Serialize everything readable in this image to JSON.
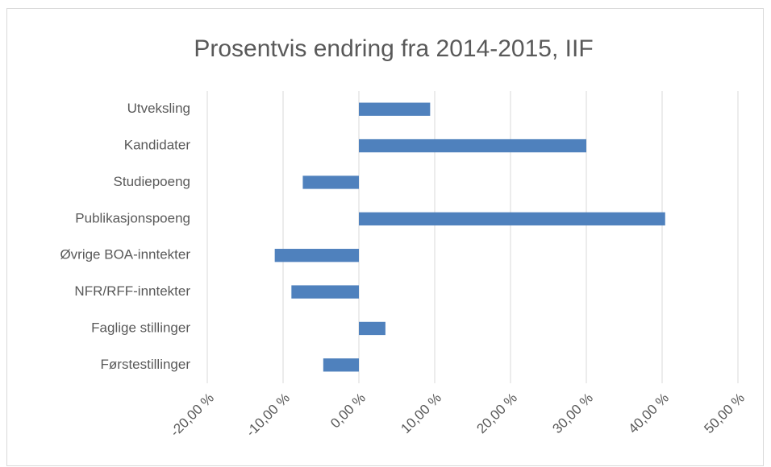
{
  "chart_data": {
    "type": "barh",
    "title": "Prosentvis endring fra 2014-2015, IIF",
    "categories": [
      "Utveksling",
      "Kandidater",
      "Studiepoeng",
      "Publikasjonspoeng",
      "Øvrige BOA-inntekter",
      "NFR/RFF-inntekter",
      "Faglige stillinger",
      "Førstestillinger"
    ],
    "values": [
      9.4,
      30,
      -7.4,
      40.4,
      -11.1,
      -8.9,
      3.5,
      -4.7
    ],
    "color": "#4f81bd",
    "xlim": [
      -20,
      50
    ],
    "xticks": [
      {
        "value": -20,
        "label": "-20,00 %"
      },
      {
        "value": -10,
        "label": "-10,00 %"
      },
      {
        "value": 0,
        "label": "0,00 %"
      },
      {
        "value": 10,
        "label": "10,00 %"
      },
      {
        "value": 20,
        "label": "20,00 %"
      },
      {
        "value": 30,
        "label": "30,00 %"
      },
      {
        "value": 40,
        "label": "40,00 %"
      },
      {
        "value": 50,
        "label": "50,00 %"
      }
    ],
    "grid": true
  }
}
